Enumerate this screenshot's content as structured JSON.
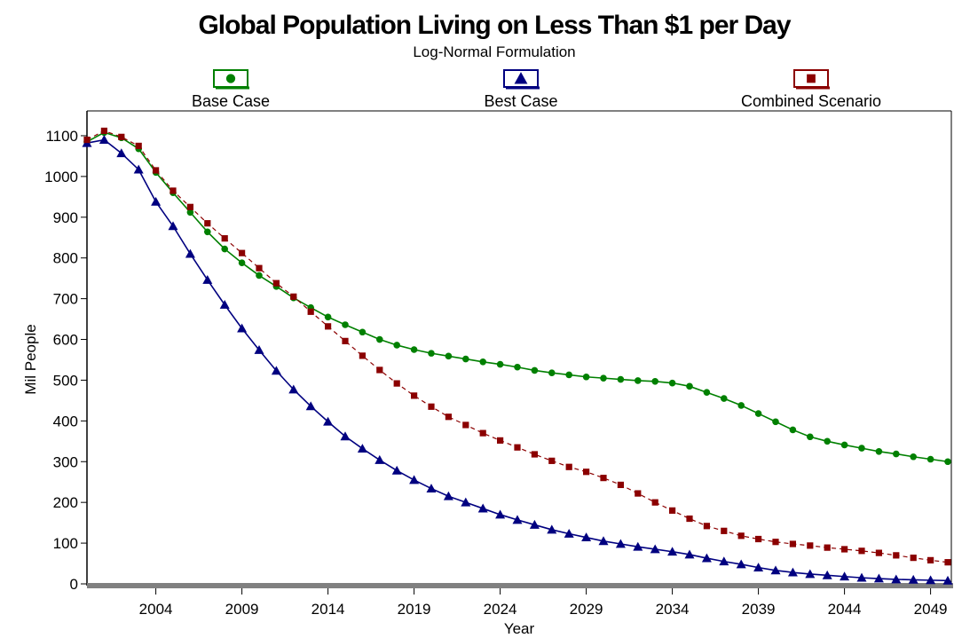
{
  "chart_data": {
    "type": "line",
    "title": "Global Population Living on Less Than $1 per Day",
    "subtitle": "Log-Normal Formulation",
    "xlabel": "Year",
    "ylabel": "Mil People",
    "xlim": [
      2000,
      2050
    ],
    "ylim": [
      0,
      1150
    ],
    "xticks": [
      2004,
      2009,
      2014,
      2019,
      2024,
      2029,
      2034,
      2039,
      2044,
      2049
    ],
    "yticks": [
      0,
      100,
      200,
      300,
      400,
      500,
      600,
      700,
      800,
      900,
      1000,
      1100
    ],
    "grid": false,
    "legend_position": "top",
    "x": [
      2000,
      2001,
      2002,
      2003,
      2004,
      2005,
      2006,
      2007,
      2008,
      2009,
      2010,
      2011,
      2012,
      2013,
      2014,
      2015,
      2016,
      2017,
      2018,
      2019,
      2020,
      2021,
      2022,
      2023,
      2024,
      2025,
      2026,
      2027,
      2028,
      2029,
      2030,
      2031,
      2032,
      2033,
      2034,
      2035,
      2036,
      2037,
      2038,
      2039,
      2040,
      2041,
      2042,
      2043,
      2044,
      2045,
      2046,
      2047,
      2048,
      2049,
      2050
    ],
    "series": [
      {
        "name": "Base Case",
        "color": "#008000",
        "marker": "circle",
        "line_style": "solid",
        "values": [
          1085,
          1108,
          1095,
          1068,
          1010,
          960,
          912,
          864,
          822,
          788,
          757,
          730,
          702,
          678,
          655,
          636,
          618,
          600,
          586,
          575,
          566,
          559,
          552,
          545,
          539,
          532,
          524,
          518,
          513,
          508,
          505,
          502,
          499,
          497,
          493,
          485,
          470,
          455,
          438,
          418,
          398,
          378,
          361,
          350,
          341,
          333,
          325,
          319,
          312,
          306,
          300
        ]
      },
      {
        "name": "Best Case",
        "color": "#000080",
        "marker": "triangle",
        "line_style": "solid",
        "values": [
          1082,
          1090,
          1057,
          1017,
          938,
          878,
          810,
          746,
          685,
          627,
          574,
          523,
          477,
          436,
          398,
          362,
          332,
          304,
          278,
          255,
          234,
          215,
          200,
          185,
          170,
          157,
          145,
          133,
          123,
          114,
          105,
          98,
          91,
          85,
          79,
          72,
          63,
          55,
          48,
          40,
          33,
          28,
          24,
          21,
          18,
          15,
          13,
          11,
          10,
          9,
          8
        ]
      },
      {
        "name": "Combined Scenario",
        "color": "#8B0000",
        "marker": "square",
        "line_style": "dashed",
        "values": [
          1090,
          1112,
          1097,
          1075,
          1015,
          965,
          925,
          885,
          848,
          812,
          775,
          738,
          705,
          668,
          632,
          596,
          560,
          525,
          492,
          462,
          435,
          410,
          390,
          370,
          352,
          335,
          318,
          302,
          287,
          275,
          260,
          243,
          222,
          200,
          180,
          160,
          142,
          130,
          118,
          110,
          103,
          98,
          94,
          89,
          85,
          81,
          76,
          70,
          64,
          58,
          53
        ]
      }
    ]
  }
}
